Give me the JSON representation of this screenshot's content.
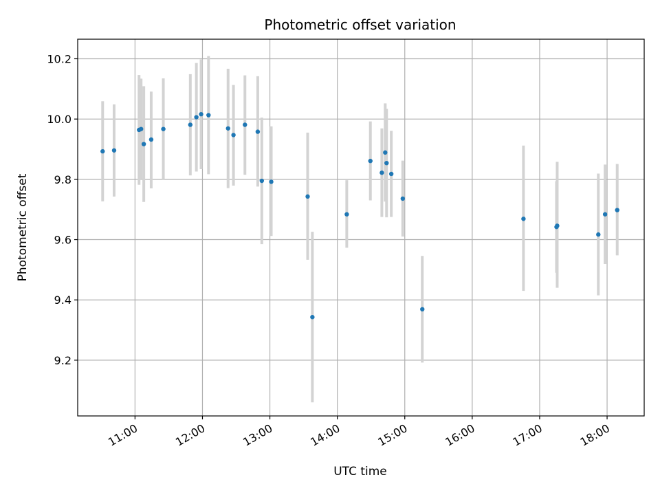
{
  "chart_data": {
    "type": "scatter",
    "title": "Photometric offset variation",
    "xlabel": "UTC time",
    "ylabel": "Photometric offset",
    "x_unit": "hours UTC",
    "xlim": [
      10.15,
      18.55
    ],
    "ylim": [
      9.015,
      10.265
    ],
    "grid": true,
    "x_ticks": [
      11,
      12,
      13,
      14,
      15,
      16,
      17,
      18
    ],
    "x_tick_labels": [
      "11:00",
      "12:00",
      "13:00",
      "14:00",
      "15:00",
      "16:00",
      "17:00",
      "18:00"
    ],
    "y_ticks": [
      9.2,
      9.4,
      9.6,
      9.8,
      10.0,
      10.2
    ],
    "y_tick_labels": [
      "9.2",
      "9.4",
      "9.6",
      "9.8",
      "10.0",
      "10.2"
    ],
    "marker_color": "#1f77b4",
    "errorbar_color": "#d3d3d3",
    "series": [
      {
        "points": [
          {
            "x": 10.52,
            "y": 9.893,
            "lo": 9.727,
            "hi": 10.059
          },
          {
            "x": 10.69,
            "y": 9.896,
            "lo": 9.743,
            "hi": 10.049
          },
          {
            "x": 11.06,
            "y": 9.964,
            "lo": 9.782,
            "hi": 10.146
          },
          {
            "x": 11.09,
            "y": 9.967,
            "lo": 9.8,
            "hi": 10.134
          },
          {
            "x": 11.13,
            "y": 9.917,
            "lo": 9.725,
            "hi": 10.109
          },
          {
            "x": 11.24,
            "y": 9.932,
            "lo": 9.77,
            "hi": 10.091
          },
          {
            "x": 11.42,
            "y": 9.967,
            "lo": 9.8,
            "hi": 10.135
          },
          {
            "x": 11.82,
            "y": 9.981,
            "lo": 9.813,
            "hi": 10.149
          },
          {
            "x": 11.91,
            "y": 10.006,
            "lo": 9.826,
            "hi": 10.186
          },
          {
            "x": 11.98,
            "y": 10.016,
            "lo": 9.834,
            "hi": 10.198
          },
          {
            "x": 12.09,
            "y": 10.013,
            "lo": 9.817,
            "hi": 10.209
          },
          {
            "x": 12.38,
            "y": 9.969,
            "lo": 9.771,
            "hi": 10.167
          },
          {
            "x": 12.46,
            "y": 9.947,
            "lo": 9.779,
            "hi": 10.113
          },
          {
            "x": 12.63,
            "y": 9.981,
            "lo": 9.815,
            "hi": 10.145
          },
          {
            "x": 12.82,
            "y": 9.958,
            "lo": 9.776,
            "hi": 10.142
          },
          {
            "x": 12.88,
            "y": 9.795,
            "lo": 9.585,
            "hi": 10.005
          },
          {
            "x": 13.02,
            "y": 9.792,
            "lo": 9.612,
            "hi": 9.976
          },
          {
            "x": 13.56,
            "y": 9.743,
            "lo": 9.533,
            "hi": 9.955
          },
          {
            "x": 13.63,
            "y": 9.343,
            "lo": 9.06,
            "hi": 9.626
          },
          {
            "x": 14.14,
            "y": 9.684,
            "lo": 9.573,
            "hi": 9.797
          },
          {
            "x": 14.49,
            "y": 9.861,
            "lo": 9.73,
            "hi": 9.992
          },
          {
            "x": 14.66,
            "y": 9.822,
            "lo": 9.675,
            "hi": 9.969
          },
          {
            "x": 14.71,
            "y": 9.889,
            "lo": 9.726,
            "hi": 10.052
          },
          {
            "x": 14.73,
            "y": 9.854,
            "lo": 9.674,
            "hi": 10.034
          },
          {
            "x": 14.8,
            "y": 9.818,
            "lo": 9.675,
            "hi": 9.961
          },
          {
            "x": 14.97,
            "y": 9.736,
            "lo": 9.61,
            "hi": 9.862
          },
          {
            "x": 15.26,
            "y": 9.369,
            "lo": 9.192,
            "hi": 9.546
          },
          {
            "x": 16.76,
            "y": 9.669,
            "lo": 9.43,
            "hi": 9.912
          },
          {
            "x": 17.25,
            "y": 9.642,
            "lo": 9.49,
            "hi": 9.794
          },
          {
            "x": 17.26,
            "y": 9.646,
            "lo": 9.44,
            "hi": 9.858
          },
          {
            "x": 17.87,
            "y": 9.617,
            "lo": 9.415,
            "hi": 9.819
          },
          {
            "x": 17.97,
            "y": 9.684,
            "lo": 9.519,
            "hi": 9.849
          },
          {
            "x": 18.15,
            "y": 9.698,
            "lo": 9.548,
            "hi": 9.851
          }
        ]
      }
    ]
  }
}
